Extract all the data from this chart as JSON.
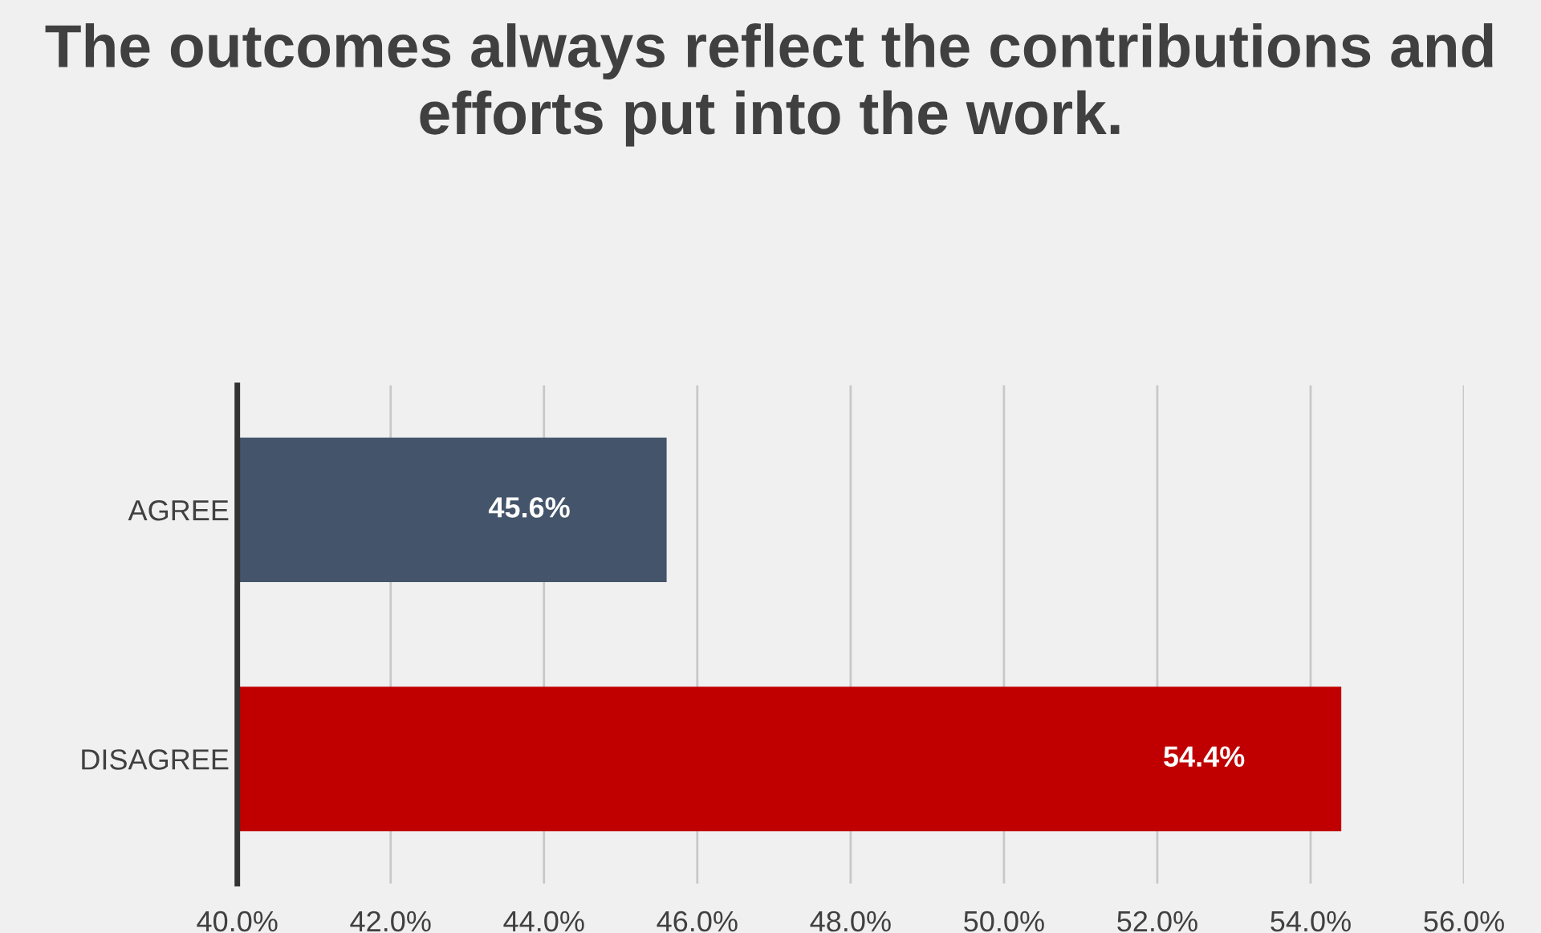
{
  "chart_data": {
    "type": "bar",
    "orientation": "horizontal",
    "title": "The outcomes always reflect the contributions and efforts put into the work.",
    "categories": [
      "AGREE",
      "DISAGREE"
    ],
    "values": [
      45.6,
      54.4
    ],
    "colors": [
      "#44546a",
      "#c00000"
    ],
    "value_labels": [
      "45.6%",
      "54.4%"
    ],
    "xlim": [
      40,
      56
    ],
    "xticks": [
      {
        "value": 40,
        "label": "40.0%"
      },
      {
        "value": 42,
        "label": "42.0%"
      },
      {
        "value": 44,
        "label": "44.0%"
      },
      {
        "value": 46,
        "label": "46.0%"
      },
      {
        "value": 48,
        "label": "48.0%"
      },
      {
        "value": 50,
        "label": "50.0%"
      },
      {
        "value": 52,
        "label": "52.0%"
      },
      {
        "value": 54,
        "label": "54.0%"
      },
      {
        "value": 56,
        "label": "56.0%"
      }
    ],
    "grid": "x",
    "legend": false
  }
}
